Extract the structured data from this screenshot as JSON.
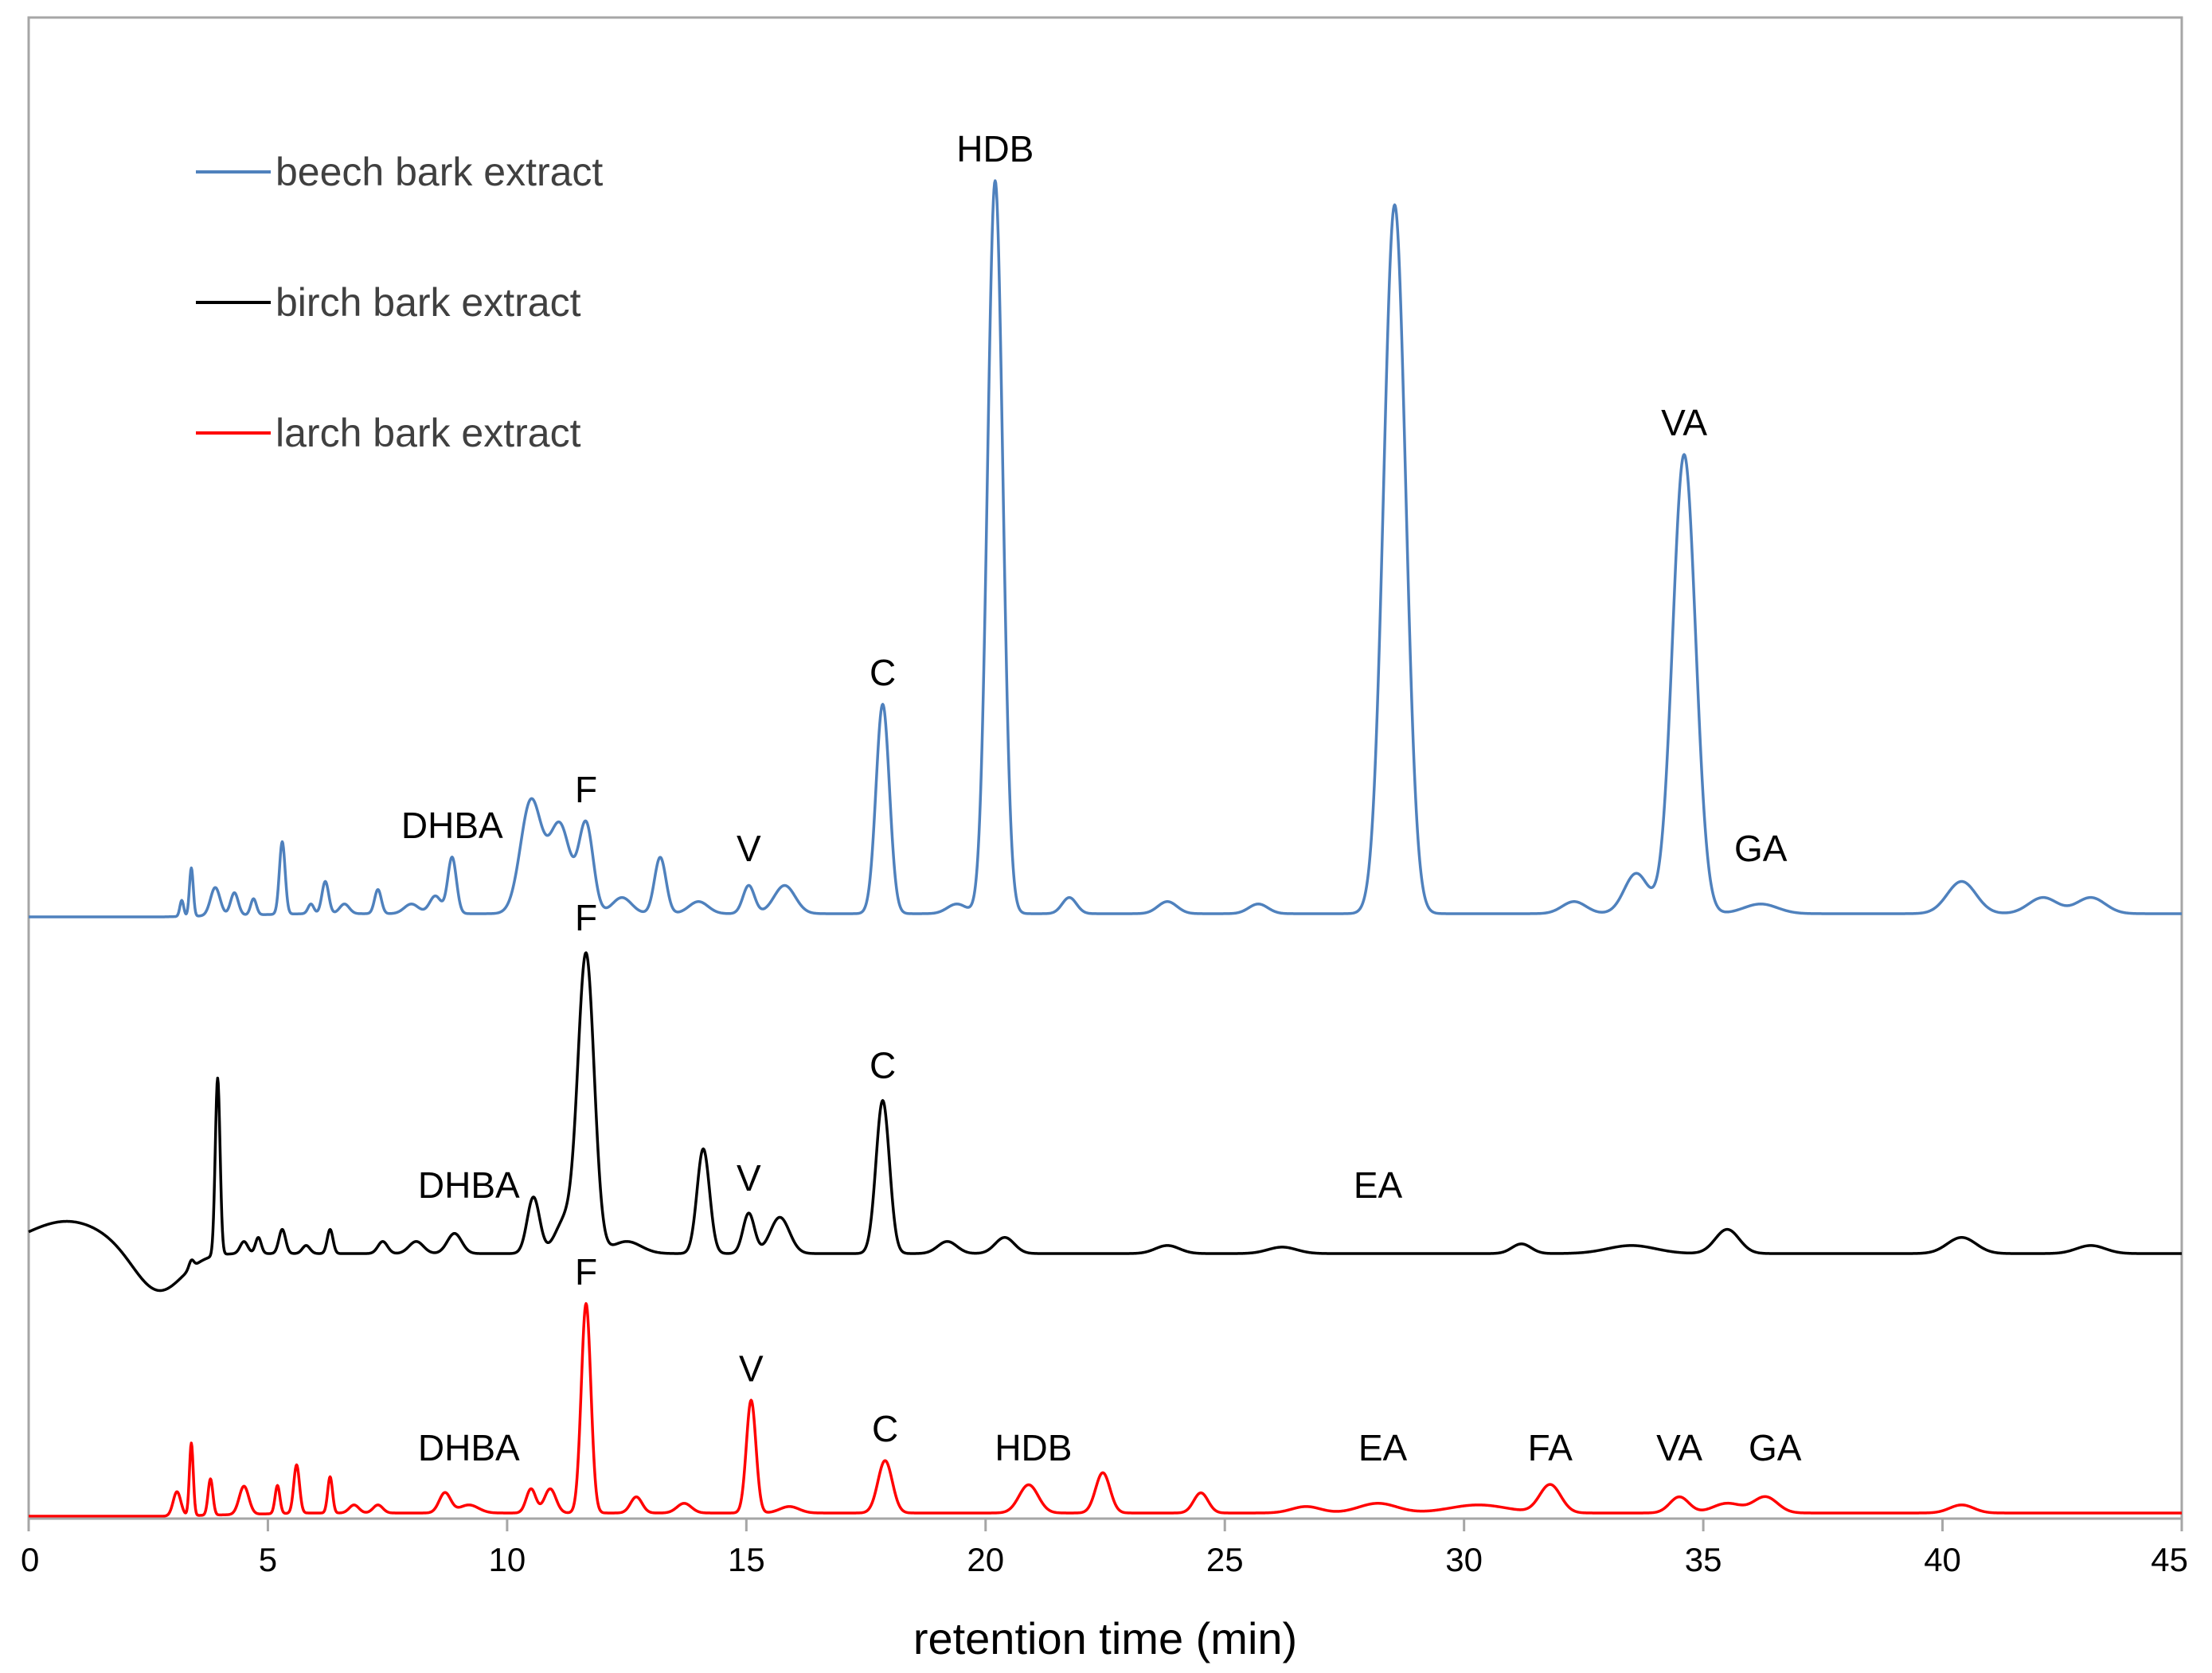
{
  "chart_data": {
    "type": "line",
    "title": "",
    "xlabel": "retention time (min)",
    "ylabel": "",
    "xlim": [
      0,
      45
    ],
    "x_ticks": [
      0,
      5,
      10,
      15,
      20,
      25,
      30,
      35,
      40,
      45
    ],
    "grid": false,
    "legend_placement": "top-left",
    "series": [
      {
        "name": "beech bark extract",
        "color": "#4f81bd",
        "baseline": 0.28,
        "peaks": [
          [
            3.2,
            0.02,
            0.04
          ],
          [
            3.4,
            0.06,
            0.04
          ],
          [
            3.9,
            0.035,
            0.1
          ],
          [
            4.3,
            0.028,
            0.08
          ],
          [
            4.7,
            0.02,
            0.06
          ],
          [
            5.3,
            0.09,
            0.06
          ],
          [
            5.9,
            0.012,
            0.06
          ],
          [
            6.2,
            0.04,
            0.07
          ],
          [
            6.6,
            0.012,
            0.1
          ],
          [
            7.3,
            0.03,
            0.07
          ],
          [
            8.0,
            0.012,
            0.15
          ],
          [
            8.5,
            0.022,
            0.12
          ],
          [
            8.85,
            0.07,
            0.09
          ],
          [
            10.5,
            0.14,
            0.22
          ],
          [
            11.1,
            0.11,
            0.22
          ],
          [
            11.65,
            0.11,
            0.15
          ],
          [
            12.4,
            0.02,
            0.2
          ],
          [
            13.2,
            0.07,
            0.12
          ],
          [
            14.0,
            0.015,
            0.2
          ],
          [
            15.05,
            0.035,
            0.12
          ],
          [
            15.8,
            0.035,
            0.22
          ],
          [
            17.85,
            0.26,
            0.14
          ],
          [
            19.4,
            0.012,
            0.2
          ],
          [
            20.2,
            0.91,
            0.16
          ],
          [
            21.75,
            0.02,
            0.15
          ],
          [
            23.8,
            0.015,
            0.2
          ],
          [
            25.7,
            0.012,
            0.2
          ],
          [
            28.55,
            0.88,
            0.23
          ],
          [
            32.3,
            0.015,
            0.25
          ],
          [
            33.6,
            0.05,
            0.25
          ],
          [
            34.6,
            0.57,
            0.24
          ],
          [
            36.2,
            0.012,
            0.35
          ],
          [
            40.4,
            0.04,
            0.3
          ],
          [
            42.1,
            0.02,
            0.3
          ],
          [
            43.1,
            0.02,
            0.3
          ]
        ],
        "peak_labels": [
          {
            "text": "DHBA",
            "x": 8.85
          },
          {
            "text": "F",
            "x": 11.65
          },
          {
            "text": "V",
            "x": 15.05
          },
          {
            "text": "C",
            "x": 17.85
          },
          {
            "text": "HDB",
            "x": 20.2
          },
          {
            "text": "VA",
            "x": 34.6
          },
          {
            "text": "GA",
            "x": 36.2
          }
        ]
      },
      {
        "name": "birch bark extract",
        "color": "#000000",
        "baseline": 0.08,
        "peaks": [
          [
            0.8,
            0.04,
            0.9
          ],
          [
            3.4,
            0.01,
            0.05
          ],
          [
            3.95,
            0.22,
            0.05
          ],
          [
            4.5,
            0.015,
            0.08
          ],
          [
            4.8,
            0.02,
            0.06
          ],
          [
            5.3,
            0.03,
            0.07
          ],
          [
            5.8,
            0.01,
            0.08
          ],
          [
            6.3,
            0.03,
            0.06
          ],
          [
            7.4,
            0.015,
            0.1
          ],
          [
            8.1,
            0.015,
            0.15
          ],
          [
            8.9,
            0.025,
            0.15
          ],
          [
            10.55,
            0.07,
            0.13
          ],
          [
            11.2,
            0.04,
            0.2
          ],
          [
            11.65,
            0.37,
            0.17
          ],
          [
            12.5,
            0.015,
            0.3
          ],
          [
            14.1,
            0.13,
            0.13
          ],
          [
            15.05,
            0.05,
            0.12
          ],
          [
            15.7,
            0.045,
            0.2
          ],
          [
            17.85,
            0.19,
            0.14
          ],
          [
            19.2,
            0.015,
            0.2
          ],
          [
            20.4,
            0.02,
            0.2
          ],
          [
            23.8,
            0.01,
            0.25
          ],
          [
            26.2,
            0.008,
            0.3
          ],
          [
            31.2,
            0.012,
            0.2
          ],
          [
            33.5,
            0.01,
            0.5
          ],
          [
            35.5,
            0.03,
            0.25
          ],
          [
            40.4,
            0.02,
            0.3
          ],
          [
            43.1,
            0.01,
            0.3
          ]
        ],
        "peak_labels": [
          {
            "text": "DHBA",
            "x": 9.2
          },
          {
            "text": "F",
            "x": 11.65
          },
          {
            "text": "V",
            "x": 15.05
          },
          {
            "text": "C",
            "x": 17.85
          },
          {
            "text": "EA",
            "x": 28.2
          }
        ]
      },
      {
        "name": "larch bark extract",
        "color": "#ff0000",
        "baseline": 0.0,
        "peaks": [
          [
            3.1,
            0.03,
            0.08
          ],
          [
            3.4,
            0.09,
            0.04
          ],
          [
            3.8,
            0.045,
            0.05
          ],
          [
            4.5,
            0.035,
            0.1
          ],
          [
            5.2,
            0.035,
            0.05
          ],
          [
            5.6,
            0.06,
            0.06
          ],
          [
            6.3,
            0.045,
            0.05
          ],
          [
            6.8,
            0.01,
            0.1
          ],
          [
            7.3,
            0.01,
            0.1
          ],
          [
            8.7,
            0.025,
            0.12
          ],
          [
            9.2,
            0.01,
            0.2
          ],
          [
            10.5,
            0.03,
            0.1
          ],
          [
            10.9,
            0.03,
            0.12
          ],
          [
            11.65,
            0.26,
            0.1
          ],
          [
            12.7,
            0.02,
            0.12
          ],
          [
            13.7,
            0.012,
            0.15
          ],
          [
            15.1,
            0.14,
            0.1
          ],
          [
            15.9,
            0.008,
            0.2
          ],
          [
            17.9,
            0.065,
            0.15
          ],
          [
            20.9,
            0.035,
            0.2
          ],
          [
            22.45,
            0.05,
            0.15
          ],
          [
            24.5,
            0.025,
            0.15
          ],
          [
            26.7,
            0.008,
            0.3
          ],
          [
            28.2,
            0.012,
            0.4
          ],
          [
            30.3,
            0.01,
            0.6
          ],
          [
            31.8,
            0.035,
            0.22
          ],
          [
            34.5,
            0.02,
            0.2
          ],
          [
            35.5,
            0.012,
            0.3
          ],
          [
            36.3,
            0.02,
            0.25
          ],
          [
            40.4,
            0.01,
            0.25
          ]
        ],
        "peak_labels": [
          {
            "text": "DHBA",
            "x": 9.2
          },
          {
            "text": "F",
            "x": 11.65
          },
          {
            "text": "V",
            "x": 15.1
          },
          {
            "text": "C",
            "x": 17.9
          },
          {
            "text": "HDB",
            "x": 21.0
          },
          {
            "text": "EA",
            "x": 28.3
          },
          {
            "text": "FA",
            "x": 31.8
          },
          {
            "text": "VA",
            "x": 34.5
          },
          {
            "text": "GA",
            "x": 36.5
          }
        ]
      }
    ]
  }
}
